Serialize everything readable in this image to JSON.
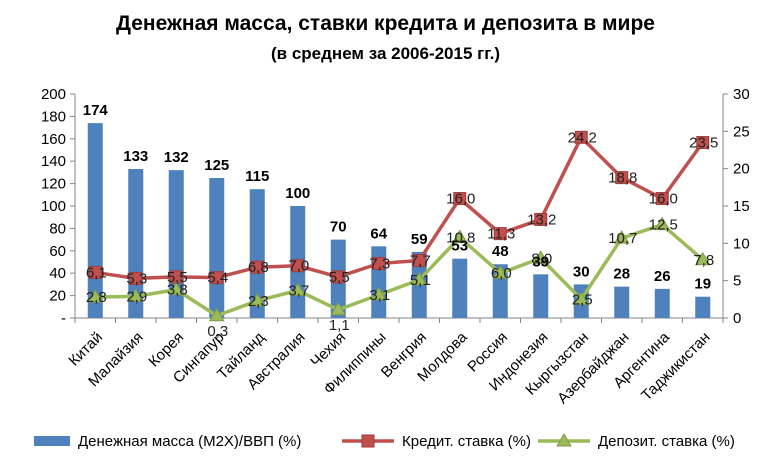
{
  "chart_data": {
    "type": "bar",
    "title": "Денежная масса, ставки кредита и депозита в мире",
    "subtitle": "(в среднем за 2006-2015 гг.)",
    "categories": [
      "Китай",
      "Малайзия",
      "Корея",
      "Сингапур",
      "Тайланд",
      "Австралия",
      "Чехия",
      "Филиппины",
      "Венгрия",
      "Молдова",
      "Россия",
      "Индонезия",
      "Кыргызстан",
      "Азербайджан",
      "Аргентина",
      "Таджикистан"
    ],
    "y_left": {
      "ylim": [
        0,
        200
      ],
      "ticks": [
        "-",
        "20",
        "40",
        "60",
        "80",
        "100",
        "120",
        "140",
        "160",
        "180",
        "200"
      ]
    },
    "y_right": {
      "ylim": [
        0,
        30
      ],
      "ticks": [
        "0",
        "5",
        "10",
        "15",
        "20",
        "25",
        "30"
      ]
    },
    "grid": false,
    "legend_position": "bottom",
    "series": [
      {
        "name": "Денежная масса (M2X)/ВВП (%)",
        "type": "bar",
        "axis": "left",
        "color": "#4f81bd",
        "values": [
          174,
          133,
          132,
          125,
          115,
          100,
          70,
          64,
          59,
          53,
          48,
          39,
          30,
          28,
          26,
          19
        ],
        "labels": [
          "174",
          "133",
          "132",
          "125",
          "115",
          "100",
          "70",
          "64",
          "59",
          "53",
          "48",
          "39",
          "30",
          "28",
          "26",
          "19"
        ]
      },
      {
        "name": "Кредит. ставка (%)",
        "type": "line",
        "axis": "right",
        "color": "#c0504d",
        "values": [
          6.1,
          5.3,
          5.5,
          5.4,
          6.8,
          7.0,
          5.5,
          7.3,
          7.7,
          16.0,
          11.3,
          13.2,
          24.2,
          18.8,
          16.0,
          23.5
        ],
        "labels": [
          "6,1",
          "5,3",
          "5,5",
          "5,4",
          "6,8",
          "7,0",
          "5,5",
          "7,3",
          "7,7",
          "16,0",
          "11,3",
          "13,2",
          "24,2",
          "18,8",
          "16,0",
          "23,5"
        ]
      },
      {
        "name": "Депозит. ставка (%)",
        "type": "line",
        "axis": "right",
        "color": "#9bbb59",
        "values": [
          2.8,
          2.9,
          3.8,
          0.3,
          2.3,
          3.7,
          1.1,
          3.1,
          5.1,
          10.8,
          6.0,
          8.0,
          2.5,
          10.7,
          12.5,
          7.8
        ],
        "labels": [
          "2,8",
          "2,9",
          "3,8",
          "0,3",
          "2,3",
          "3,7",
          "1,1",
          "3,1",
          "5,1",
          "10,8",
          "6,0",
          "8,0",
          "2,5",
          "10,7",
          "12,5",
          "7,8"
        ]
      }
    ]
  }
}
